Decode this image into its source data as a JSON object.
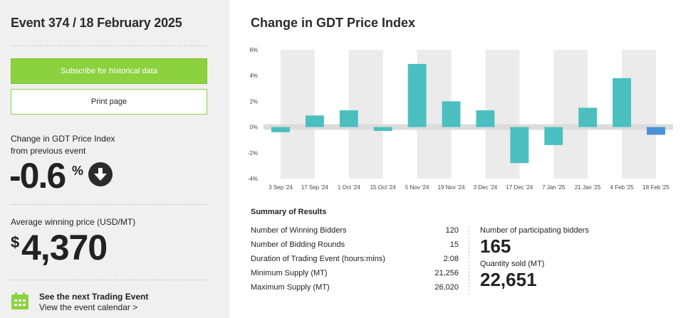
{
  "sidebar": {
    "event_title": "Event 374 / 18 February 2025",
    "subscribe_label": "Subscribe for historical data",
    "print_label": "Print page",
    "change_label_line1": "Change in GDT Price Index",
    "change_label_line2": "from previous event",
    "change_value": "-0.6",
    "change_unit": "%",
    "change_direction_icon": "arrow-down-circle-icon",
    "avg_label": "Average winning price (USD/MT)",
    "avg_currency": "$",
    "avg_value": "4,370",
    "next_event_title": "See the next Trading Event",
    "next_event_link": "View the event calendar >",
    "calendar_icon": "calendar-icon"
  },
  "main": {
    "chart_title": "Change in GDT Price Index"
  },
  "chart_data": {
    "type": "bar",
    "title": "Change in GDT Price Index",
    "xlabel": "",
    "ylabel": "",
    "categories": [
      "3 Sep '24",
      "17 Sep '24",
      "1 Oct '24",
      "15 Oct '24",
      "5 Nov '24",
      "19 Nov '24",
      "3 Dec '24",
      "17 Dec '24",
      "7 Jan '25",
      "21 Jan '25",
      "4 Feb '25",
      "18 Feb '25"
    ],
    "values": [
      -0.4,
      0.9,
      1.3,
      -0.3,
      4.9,
      2.0,
      1.3,
      -2.8,
      -1.4,
      1.5,
      3.8,
      -0.6
    ],
    "ylim": [
      -4,
      6
    ],
    "yticks": [
      -4,
      -2,
      0,
      2,
      4,
      6
    ],
    "ytick_labels": [
      "-4%",
      "-2%",
      "0%",
      "2%",
      "4%",
      "6%"
    ],
    "colors": {
      "bar": "#4bbfc0",
      "latest_bar": "#4a90d9",
      "column_band": "#ebebeb",
      "zero_band": "#dcdcdc"
    }
  },
  "summary": {
    "title": "Summary of Results",
    "rows": [
      {
        "label": "Number of Winning Bidders",
        "value": "120"
      },
      {
        "label": "Number of Bidding Rounds",
        "value": "15"
      },
      {
        "label": "Duration of Trading Event (hours:mins)",
        "value": "2:08"
      },
      {
        "label": "Minimum Supply (MT)",
        "value": "21,256"
      },
      {
        "label": "Maximum Supply (MT)",
        "value": "26,020"
      }
    ],
    "participating_label": "Number of participating bidders",
    "participating_value": "165",
    "quantity_label": "Quantity sold (MT)",
    "quantity_value": "22,651"
  },
  "colors": {
    "accent_green": "#8cd13e",
    "sidebar_bg": "#f0f0f0",
    "text": "#222222"
  }
}
